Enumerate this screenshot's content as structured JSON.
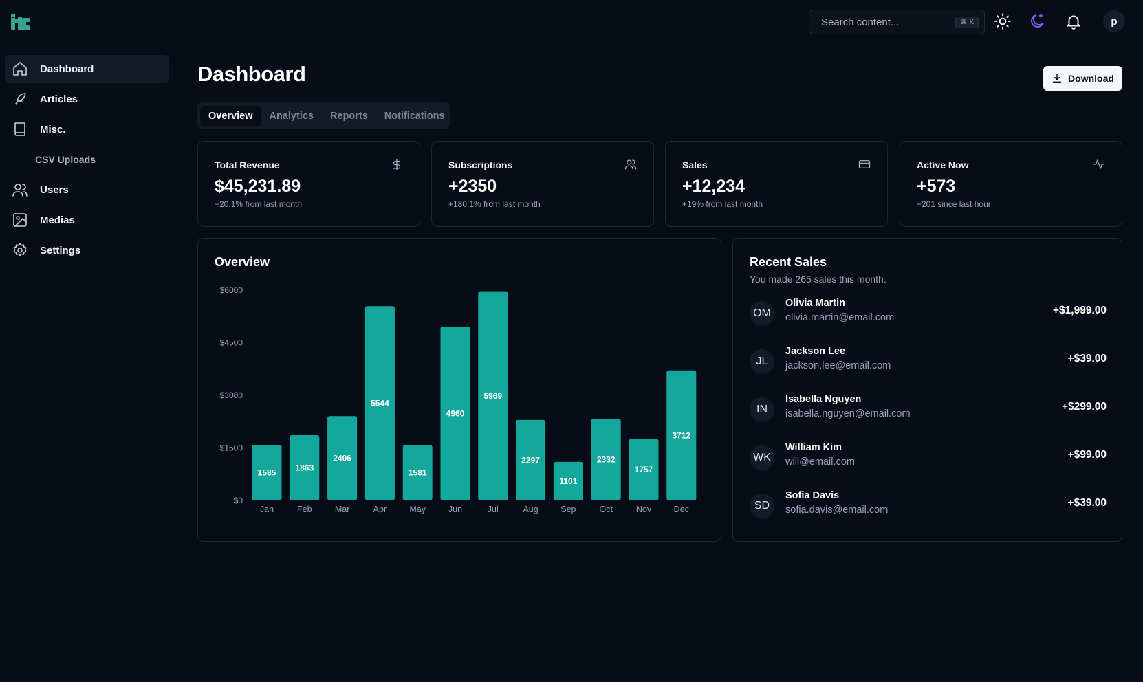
{
  "app": {
    "logo": "app-logo"
  },
  "sidebar": {
    "items": [
      {
        "label": "Dashboard",
        "icon": "home-icon",
        "active": true
      },
      {
        "label": "Articles",
        "icon": "feather-icon"
      },
      {
        "label": "Misc.",
        "icon": "book-icon"
      },
      {
        "label": "CSV Uploads",
        "sub": true
      },
      {
        "label": "Users",
        "icon": "users-icon"
      },
      {
        "label": "Medias",
        "icon": "image-icon"
      },
      {
        "label": "Settings",
        "icon": "gear-icon"
      }
    ]
  },
  "topbar": {
    "search_placeholder": "Search content...",
    "shortcut": "⌘ K",
    "avatar_initial": "p"
  },
  "header": {
    "title": "Dashboard",
    "download_label": "Download",
    "tabs": [
      "Overview",
      "Analytics",
      "Reports",
      "Notifications"
    ],
    "active_tab": "Overview"
  },
  "kpis": [
    {
      "title": "Total Revenue",
      "value": "$45,231.89",
      "sub": "+20.1% from last month",
      "icon": "dollar-icon"
    },
    {
      "title": "Subscriptions",
      "value": "+2350",
      "sub": "+180.1% from last month",
      "icon": "users-icon"
    },
    {
      "title": "Sales",
      "value": "+12,234",
      "sub": "+19% from last month",
      "icon": "credit-card-icon"
    },
    {
      "title": "Active Now",
      "value": "+573",
      "sub": "+201 since last hour",
      "icon": "activity-icon"
    }
  ],
  "overview": {
    "title": "Overview"
  },
  "chart_data": {
    "type": "bar",
    "title": "Overview",
    "categories": [
      "Jan",
      "Feb",
      "Mar",
      "Apr",
      "May",
      "Jun",
      "Jul",
      "Aug",
      "Sep",
      "Oct",
      "Nov",
      "Dec"
    ],
    "values": [
      1585,
      1863,
      2406,
      5544,
      1581,
      4960,
      5969,
      2297,
      1101,
      2332,
      1757,
      3712
    ],
    "yticks": [
      0,
      1500,
      3000,
      4500,
      6000
    ],
    "ytick_labels": [
      "$0",
      "$1500",
      "$3000",
      "$4500",
      "$6000"
    ],
    "ylim": [
      0,
      6000
    ],
    "bar_color": "#14a89c",
    "data_labels": true,
    "grid": false
  },
  "recent_sales": {
    "title": "Recent Sales",
    "subtitle": "You made 265 sales this month.",
    "items": [
      {
        "initials": "OM",
        "name": "Olivia Martin",
        "email": "olivia.martin@email.com",
        "amount": "+$1,999.00"
      },
      {
        "initials": "JL",
        "name": "Jackson Lee",
        "email": "jackson.lee@email.com",
        "amount": "+$39.00"
      },
      {
        "initials": "IN",
        "name": "Isabella Nguyen",
        "email": "isabella.nguyen@email.com",
        "amount": "+$299.00"
      },
      {
        "initials": "WK",
        "name": "William Kim",
        "email": "will@email.com",
        "amount": "+$99.00"
      },
      {
        "initials": "SD",
        "name": "Sofia Davis",
        "email": "sofia.davis@email.com",
        "amount": "+$39.00"
      }
    ]
  },
  "colors": {
    "accent": "#14a89c",
    "moon": "#7c5cf0",
    "background": "#080c16"
  }
}
